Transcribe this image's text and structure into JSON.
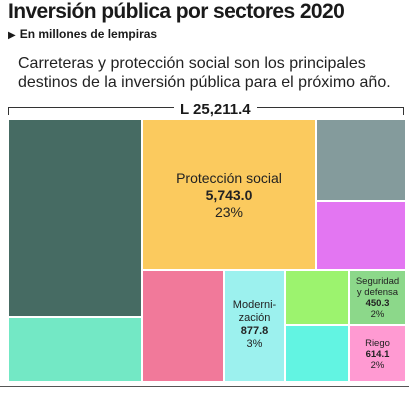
{
  "header": {
    "title": "Inversión pública por sectores 2020",
    "subtitle": "En millones de lempiras",
    "description_line1": "Carreteras y protección social son los principales",
    "description_line2": "destinos de la inversión pública para el próximo año.",
    "total": "L 25,211.4"
  },
  "chart_data": {
    "type": "treemap",
    "total": 25211.4,
    "unit": "millones de lempiras",
    "tiles": [
      {
        "id": "dark-teal",
        "name": "",
        "value": null,
        "color": "#466b63"
      },
      {
        "id": "mint",
        "name": "",
        "value": null,
        "color": "#73e8c5"
      },
      {
        "id": "proteccion-social",
        "name": "Protección social",
        "value_label": "5,743.0",
        "pct_label": "23%",
        "value": 5743.0,
        "color": "#fbca5e"
      },
      {
        "id": "slate-gray",
        "name": "",
        "value": null,
        "color": "#849b9c"
      },
      {
        "id": "violet",
        "name": "",
        "value": null,
        "color": "#e376f2"
      },
      {
        "id": "pink",
        "name": "",
        "value": null,
        "color": "#f1799a"
      },
      {
        "id": "modernizacion",
        "name": "Moderni-\nzación",
        "value_label": "877.8",
        "pct_label": "3%",
        "value": 877.8,
        "color": "#9cf1ee"
      },
      {
        "id": "lime",
        "name": "",
        "value": null,
        "color": "#9cf36e"
      },
      {
        "id": "seguridad-defensa",
        "name": "Seguridad\ny defensa",
        "value_label": "450.3",
        "pct_label": "2%",
        "value": 450.3,
        "color": "#8cd88a"
      },
      {
        "id": "cyan",
        "name": "",
        "value": null,
        "color": "#62f4e2"
      },
      {
        "id": "riego",
        "name": "Riego",
        "value_label": "614.1",
        "pct_label": "2%",
        "value": 614.1,
        "color": "#ff9ad2"
      }
    ]
  }
}
